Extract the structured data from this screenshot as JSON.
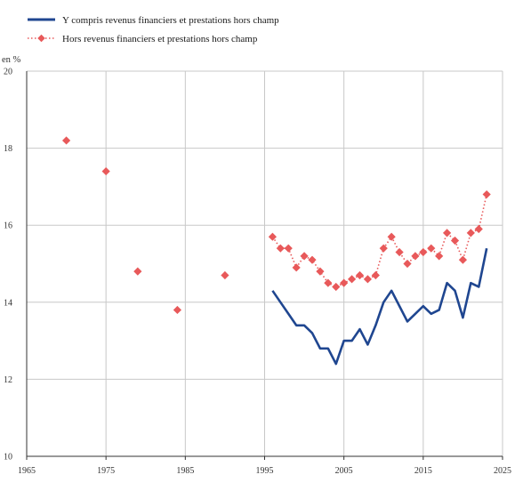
{
  "colors": {
    "series_with_financial": "#1f4690",
    "series_without_financial": "#e8595a",
    "grid": "#c8c8c8",
    "axis": "#333333"
  },
  "chart_data": {
    "type": "line",
    "title": "",
    "xlabel": "",
    "ylabel": "en %",
    "xlim": [
      1965,
      2025
    ],
    "ylim": [
      10,
      20
    ],
    "xticks": [
      1965,
      1975,
      1985,
      1995,
      2005,
      2015,
      2025
    ],
    "yticks": [
      10,
      12,
      14,
      16,
      18,
      20
    ],
    "grid": true,
    "legend_position": "top-left",
    "series": [
      {
        "name": "Y compris revenus financiers et prestations hors champ",
        "style": "solid-line",
        "x": [
          1996,
          1997,
          1998,
          1999,
          2000,
          2001,
          2002,
          2003,
          2004,
          2005,
          2006,
          2007,
          2008,
          2009,
          2010,
          2011,
          2012,
          2013,
          2014,
          2015,
          2016,
          2017,
          2018,
          2019,
          2020,
          2021,
          2022,
          2023
        ],
        "y": [
          14.3,
          14.0,
          13.7,
          13.4,
          13.4,
          13.2,
          12.8,
          12.8,
          12.4,
          13.0,
          13.0,
          13.3,
          12.9,
          13.4,
          14.0,
          14.3,
          13.9,
          13.5,
          13.7,
          13.9,
          13.7,
          13.8,
          14.5,
          14.3,
          13.6,
          14.5,
          14.4,
          15.4
        ]
      },
      {
        "name": "Hors revenus financiers et prestations hors champ",
        "style": "dotted-line-with-diamonds",
        "x": [
          1970,
          1975,
          1979,
          1984,
          1990,
          1996,
          1997,
          1998,
          1999,
          2000,
          2001,
          2002,
          2003,
          2004,
          2005,
          2006,
          2007,
          2008,
          2009,
          2010,
          2011,
          2012,
          2013,
          2014,
          2015,
          2016,
          2017,
          2018,
          2019,
          2020,
          2021,
          2022,
          2023
        ],
        "y": [
          18.2,
          17.4,
          14.8,
          13.8,
          14.7,
          15.7,
          15.4,
          15.4,
          14.9,
          15.2,
          15.1,
          14.8,
          14.5,
          14.4,
          14.5,
          14.6,
          14.7,
          14.6,
          14.7,
          15.4,
          15.7,
          15.3,
          15.0,
          15.2,
          15.3,
          15.4,
          15.2,
          15.8,
          15.6,
          15.1,
          15.8,
          15.9,
          16.8
        ],
        "connect_from_x": 1996
      }
    ]
  }
}
